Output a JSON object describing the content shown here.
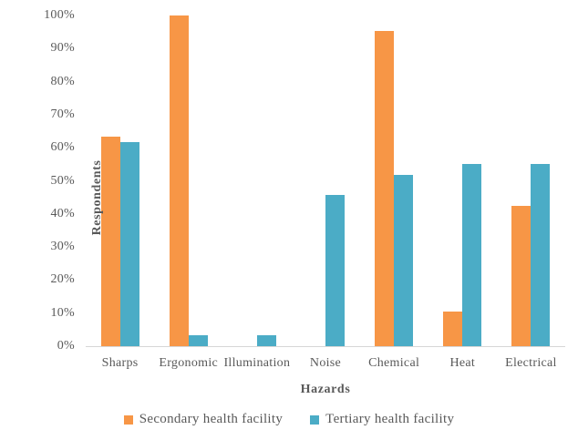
{
  "chart_data": {
    "type": "bar",
    "title": "",
    "xlabel": "Hazards",
    "ylabel": "Respondents",
    "categories": [
      "Sharps",
      "Ergonomic",
      "Illumination",
      "Noise",
      "Chemical",
      "Heat",
      "Electrical"
    ],
    "series": [
      {
        "name": "Secondary health facility",
        "color": "#F79646",
        "values": [
          63.3,
          100,
          0,
          0,
          95.3,
          10.5,
          42.5
        ]
      },
      {
        "name": "Tertiary health facility",
        "color": "#4BACC6",
        "values": [
          61.7,
          3.4,
          3.4,
          45.6,
          51.7,
          55.2,
          55.2
        ]
      }
    ],
    "ylim": [
      0,
      100
    ],
    "yticks": [
      0,
      10,
      20,
      30,
      40,
      50,
      60,
      70,
      80,
      90,
      100
    ],
    "ytick_suffix": "%",
    "grid": false,
    "legend_position": "bottom",
    "axis_line_color": "#d6d6d6",
    "text_color": "#595959"
  }
}
